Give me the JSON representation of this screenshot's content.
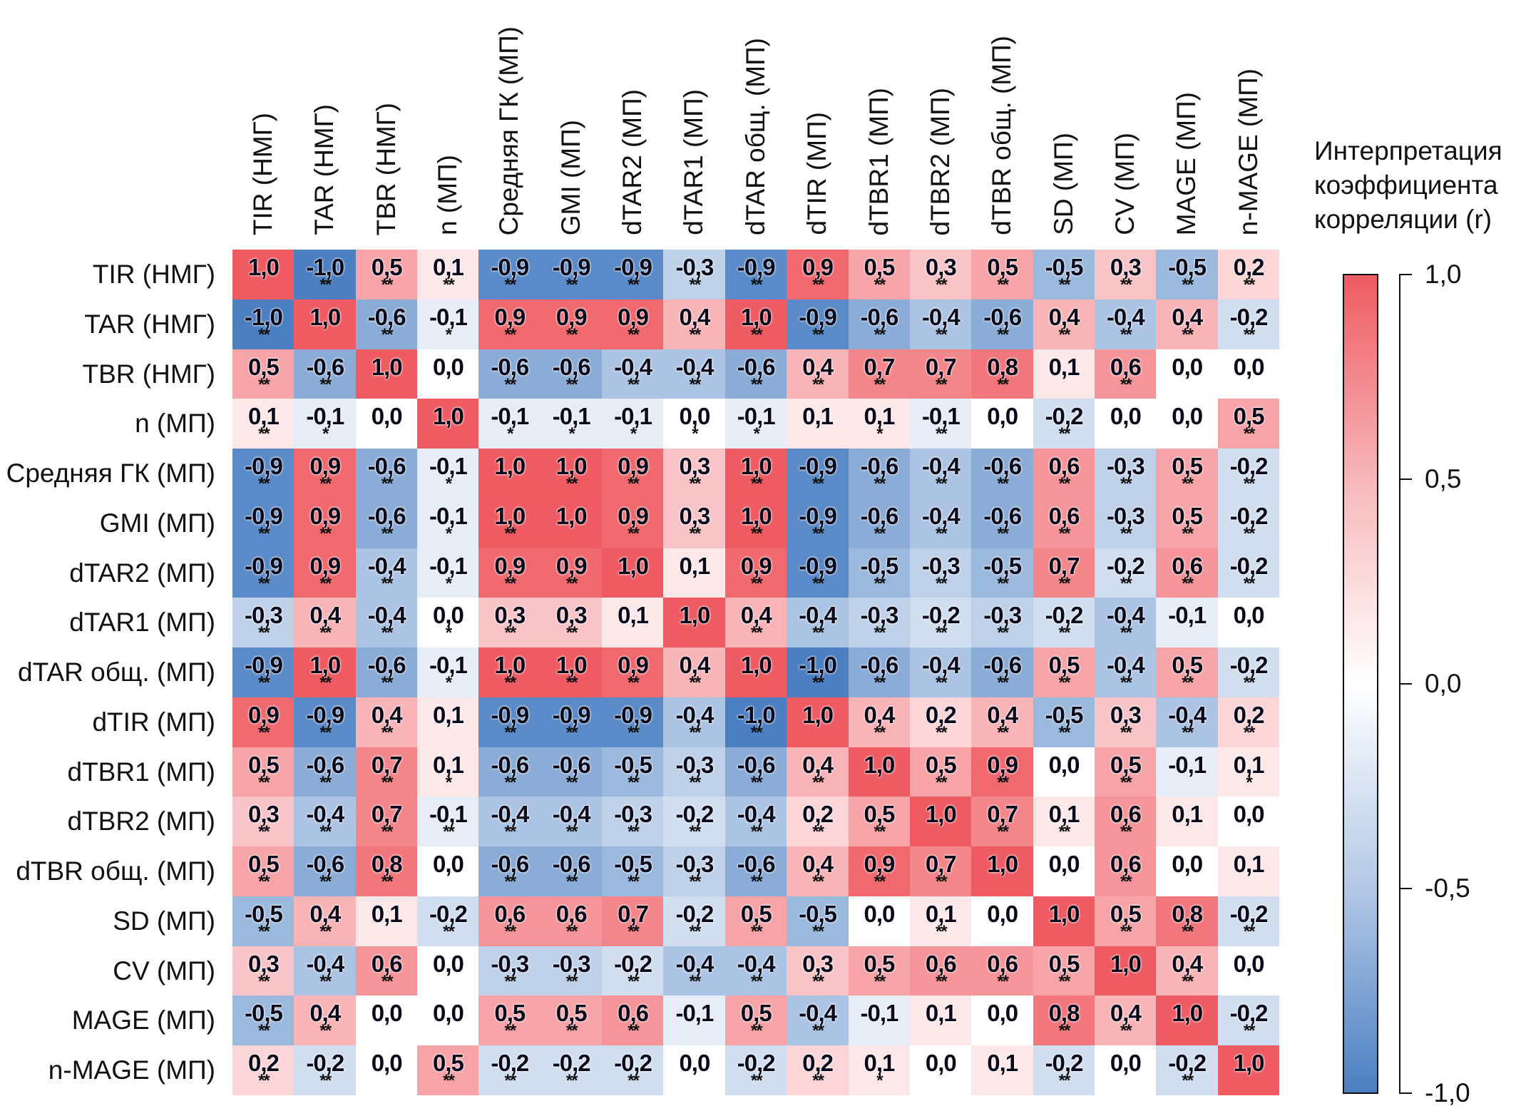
{
  "chart_data": {
    "type": "heatmap",
    "title": "",
    "labels": [
      "TIR (НМГ)",
      "TAR (НМГ)",
      "TBR (НМГ)",
      "n (МП)",
      "Средняя ГК (МП)",
      "GMI (МП)",
      "dTAR2 (МП)",
      "dTAR1 (МП)",
      "dTAR общ. (МП)",
      "dTIR (МП)",
      "dTBR1 (МП)",
      "dTBR2 (МП)",
      "dTBR общ. (МП)",
      "SD (МП)",
      "CV (МП)",
      "MAGE (МП)",
      "n-MAGE (МП)"
    ],
    "values": [
      [
        1.0,
        -1.0,
        0.5,
        0.1,
        -0.9,
        -0.9,
        -0.9,
        -0.3,
        -0.9,
        0.9,
        0.5,
        0.3,
        0.5,
        -0.5,
        0.3,
        -0.5,
        0.2
      ],
      [
        -1.0,
        1.0,
        -0.6,
        -0.1,
        0.9,
        0.9,
        0.9,
        0.4,
        1.0,
        -0.9,
        -0.6,
        -0.4,
        -0.6,
        0.4,
        -0.4,
        0.4,
        -0.2
      ],
      [
        0.5,
        -0.6,
        1.0,
        0.0,
        -0.6,
        -0.6,
        -0.4,
        -0.4,
        -0.6,
        0.4,
        0.7,
        0.7,
        0.8,
        0.1,
        0.6,
        0.0,
        0.0
      ],
      [
        0.1,
        -0.1,
        0.0,
        1.0,
        -0.1,
        -0.1,
        -0.1,
        0.0,
        -0.1,
        0.1,
        0.1,
        -0.1,
        0.0,
        -0.2,
        0.0,
        0.0,
        0.5
      ],
      [
        -0.9,
        0.9,
        -0.6,
        -0.1,
        1.0,
        1.0,
        0.9,
        0.3,
        1.0,
        -0.9,
        -0.6,
        -0.4,
        -0.6,
        0.6,
        -0.3,
        0.5,
        -0.2
      ],
      [
        -0.9,
        0.9,
        -0.6,
        -0.1,
        1.0,
        1.0,
        0.9,
        0.3,
        1.0,
        -0.9,
        -0.6,
        -0.4,
        -0.6,
        0.6,
        -0.3,
        0.5,
        -0.2
      ],
      [
        -0.9,
        0.9,
        -0.4,
        -0.1,
        0.9,
        0.9,
        1.0,
        0.1,
        0.9,
        -0.9,
        -0.5,
        -0.3,
        -0.5,
        0.7,
        -0.2,
        0.6,
        -0.2
      ],
      [
        -0.3,
        0.4,
        -0.4,
        0.0,
        0.3,
        0.3,
        0.1,
        1.0,
        0.4,
        -0.4,
        -0.3,
        -0.2,
        -0.3,
        -0.2,
        -0.4,
        -0.1,
        0.0
      ],
      [
        -0.9,
        1.0,
        -0.6,
        -0.1,
        1.0,
        1.0,
        0.9,
        0.4,
        1.0,
        -1.0,
        -0.6,
        -0.4,
        -0.6,
        0.5,
        -0.4,
        0.5,
        -0.2
      ],
      [
        0.9,
        -0.9,
        0.4,
        0.1,
        -0.9,
        -0.9,
        -0.9,
        -0.4,
        -1.0,
        1.0,
        0.4,
        0.2,
        0.4,
        -0.5,
        0.3,
        -0.4,
        0.2
      ],
      [
        0.5,
        -0.6,
        0.7,
        0.1,
        -0.6,
        -0.6,
        -0.5,
        -0.3,
        -0.6,
        0.4,
        1.0,
        0.5,
        0.9,
        0.0,
        0.5,
        -0.1,
        0.1
      ],
      [
        0.3,
        -0.4,
        0.7,
        -0.1,
        -0.4,
        -0.4,
        -0.3,
        -0.2,
        -0.4,
        0.2,
        0.5,
        1.0,
        0.7,
        0.1,
        0.6,
        0.1,
        0.0
      ],
      [
        0.5,
        -0.6,
        0.8,
        0.0,
        -0.6,
        -0.6,
        -0.5,
        -0.3,
        -0.6,
        0.4,
        0.9,
        0.7,
        1.0,
        0.0,
        0.6,
        0.0,
        0.1
      ],
      [
        -0.5,
        0.4,
        0.1,
        -0.2,
        0.6,
        0.6,
        0.7,
        -0.2,
        0.5,
        -0.5,
        0.0,
        0.1,
        0.0,
        1.0,
        0.5,
        0.8,
        -0.2
      ],
      [
        0.3,
        -0.4,
        0.6,
        0.0,
        -0.3,
        -0.3,
        -0.2,
        -0.4,
        -0.4,
        0.3,
        0.5,
        0.6,
        0.6,
        0.5,
        1.0,
        0.4,
        0.0
      ],
      [
        -0.5,
        0.4,
        0.0,
        0.0,
        0.5,
        0.5,
        0.6,
        -0.1,
        0.5,
        -0.4,
        -0.1,
        0.1,
        0.0,
        0.8,
        0.4,
        1.0,
        -0.2
      ],
      [
        0.2,
        -0.2,
        0.0,
        0.5,
        -0.2,
        -0.2,
        -0.2,
        0.0,
        -0.2,
        0.2,
        0.1,
        0.0,
        0.1,
        -0.2,
        0.0,
        -0.2,
        1.0
      ]
    ],
    "significance": [
      [
        "",
        "**",
        "**",
        "**",
        "**",
        "**",
        "**",
        "**",
        "**",
        "**",
        "**",
        "**",
        "**",
        "**",
        "**",
        "**",
        "**"
      ],
      [
        "**",
        "",
        "**",
        "*",
        "**",
        "**",
        "**",
        "**",
        "**",
        "**",
        "**",
        "**",
        "**",
        "**",
        "**",
        "**",
        "**"
      ],
      [
        "**",
        "**",
        "",
        "",
        "**",
        "**",
        "**",
        "**",
        "**",
        "**",
        "**",
        "**",
        "**",
        "",
        "**",
        "",
        ""
      ],
      [
        "**",
        "*",
        "",
        "",
        "*",
        "*",
        "*",
        "*",
        "*",
        "",
        "*",
        "**",
        "",
        "**",
        "",
        "",
        "**"
      ],
      [
        "**",
        "**",
        "**",
        "*",
        "",
        "**",
        "**",
        "**",
        "**",
        "**",
        "**",
        "**",
        "**",
        "**",
        "**",
        "**",
        "**"
      ],
      [
        "**",
        "**",
        "**",
        "*",
        "**",
        "",
        "**",
        "**",
        "**",
        "**",
        "**",
        "**",
        "**",
        "**",
        "**",
        "**",
        "**"
      ],
      [
        "**",
        "**",
        "**",
        "*",
        "**",
        "**",
        "",
        "",
        "**",
        "**",
        "**",
        "**",
        "**",
        "**",
        "**",
        "**",
        "**"
      ],
      [
        "**",
        "**",
        "**",
        "*",
        "**",
        "**",
        "",
        "",
        "**",
        "**",
        "**",
        "**",
        "**",
        "**",
        "**",
        "",
        ""
      ],
      [
        "**",
        "**",
        "**",
        "*",
        "**",
        "**",
        "**",
        "**",
        "",
        "**",
        "**",
        "**",
        "**",
        "**",
        "**",
        "**",
        "**"
      ],
      [
        "**",
        "**",
        "**",
        "",
        "**",
        "**",
        "**",
        "**",
        "**",
        "",
        "**",
        "**",
        "**",
        "**",
        "**",
        "**",
        "**"
      ],
      [
        "**",
        "**",
        "**",
        "*",
        "**",
        "**",
        "**",
        "**",
        "**",
        "**",
        "",
        "**",
        "**",
        "",
        "**",
        "",
        "*"
      ],
      [
        "**",
        "**",
        "**",
        "**",
        "**",
        "**",
        "**",
        "**",
        "**",
        "**",
        "**",
        "",
        "**",
        "**",
        "**",
        "",
        ""
      ],
      [
        "**",
        "**",
        "**",
        "",
        "**",
        "**",
        "**",
        "**",
        "**",
        "**",
        "**",
        "**",
        "",
        "",
        "**",
        "",
        ""
      ],
      [
        "**",
        "**",
        "",
        "**",
        "**",
        "**",
        "**",
        "**",
        "**",
        "**",
        "",
        "**",
        "",
        "",
        "**",
        "**",
        "**"
      ],
      [
        "**",
        "**",
        "**",
        "",
        "**",
        "**",
        "**",
        "**",
        "**",
        "**",
        "**",
        "**",
        "**",
        "**",
        "",
        "**",
        ""
      ],
      [
        "**",
        "**",
        "",
        "",
        "**",
        "**",
        "**",
        "",
        "**",
        "**",
        "",
        "",
        "",
        "**",
        "**",
        "",
        "**"
      ],
      [
        "**",
        "**",
        "",
        "**",
        "**",
        "**",
        "**",
        "",
        "**",
        "**",
        "*",
        "",
        "",
        "**",
        "",
        "**",
        ""
      ]
    ],
    "colorbar": {
      "title_lines": [
        "Интерпретация",
        "коэффициента",
        "корреляции (r)"
      ],
      "range": [
        -1.0,
        1.0
      ],
      "ticks": [
        1.0,
        0.5,
        0.0,
        -0.5,
        -1.0
      ],
      "tick_labels": [
        "1,0",
        "0,5",
        "0,0",
        "-0,5",
        "-1,0"
      ],
      "colors": {
        "neg": "#4b7fc2",
        "zero": "#ffffff",
        "pos": "#ef5b62"
      }
    }
  }
}
